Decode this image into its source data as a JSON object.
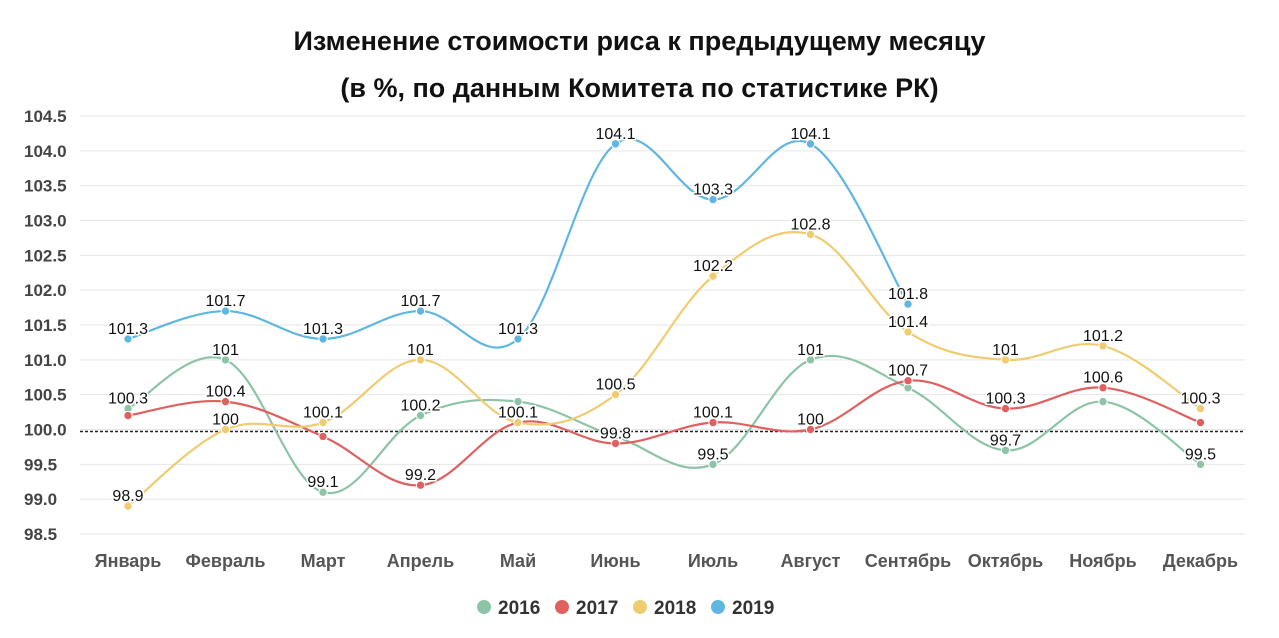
{
  "chart_data": {
    "type": "line",
    "title": "Изменение стоимости риса к предыдущему месяцу",
    "subtitle": "(в %, по данным Комитета по статистике РК)",
    "xlabel": "",
    "ylabel": "",
    "categories": [
      "Январь",
      "Февраль",
      "Март",
      "Апрель",
      "Май",
      "Июнь",
      "Июль",
      "Август",
      "Сентябрь",
      "Октябрь",
      "Ноябрь",
      "Декабрь"
    ],
    "ylim": [
      98.5,
      104.5
    ],
    "yticks": [
      "98.5",
      "99.0",
      "99.5",
      "100.0",
      "100.5",
      "101.0",
      "101.5",
      "102.0",
      "102.5",
      "103.0",
      "103.5",
      "104.0",
      "104.5"
    ],
    "reference_line": 100,
    "grid": true,
    "legend_position": "bottom",
    "series": [
      {
        "name": "2016",
        "color": "#8dc3a7",
        "values": [
          100.3,
          101,
          99.1,
          100.2,
          100.4,
          99.9,
          99.5,
          101,
          100.6,
          99.7,
          100.4,
          99.5
        ],
        "labels": [
          "100.3",
          "101",
          "99.1",
          "100.2",
          "",
          "",
          "99.5",
          "101",
          "",
          "99.7",
          "",
          "99.5"
        ]
      },
      {
        "name": "2017",
        "color": "#e06060",
        "values": [
          100.2,
          100.4,
          99.9,
          99.2,
          100.1,
          99.8,
          100.1,
          100,
          100.7,
          100.3,
          100.6,
          100.1
        ],
        "labels": [
          "",
          "100.4",
          "",
          "99.2",
          "100.1",
          "99.8",
          "100.1",
          "100",
          "100.7",
          "100.3",
          "100.6",
          ""
        ]
      },
      {
        "name": "2018",
        "color": "#f0cc70",
        "values": [
          98.9,
          100,
          100.1,
          101,
          100.1,
          100.5,
          102.2,
          102.8,
          101.4,
          101,
          101.2,
          100.3
        ],
        "labels": [
          "98.9",
          "100",
          "100.1",
          "101",
          "",
          "100.5",
          "102.2",
          "102.8",
          "101.4",
          "101",
          "101.2",
          "100.3"
        ]
      },
      {
        "name": "2019",
        "color": "#5fb7e0",
        "values": [
          101.3,
          101.7,
          101.3,
          101.7,
          101.3,
          104.1,
          103.3,
          104.1,
          101.8,
          null,
          null,
          null
        ],
        "labels": [
          "101.3",
          "101.7",
          "101.3",
          "101.7",
          "101.3",
          "104.1",
          "103.3",
          "104.1",
          "101.8",
          "",
          "",
          ""
        ]
      }
    ]
  }
}
